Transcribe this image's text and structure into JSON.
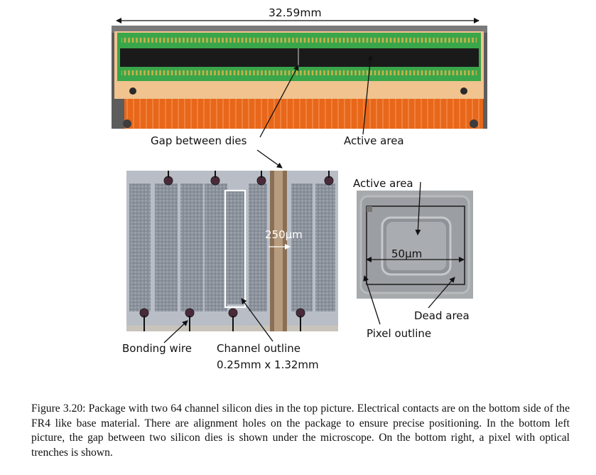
{
  "figure": {
    "dimension_label": "32.59mm",
    "callouts": {
      "gap_between_dies": "Gap between dies",
      "active_area_top": "Active area",
      "active_area_pixel": "Active area",
      "dead_area": "Dead area",
      "pixel_outline": "Pixel outline",
      "bonding_wire": "Bonding wire",
      "channel_outline_1": "Channel outline",
      "channel_outline_2": "0.25mm x 1.32mm",
      "gap_size": "250μm",
      "pixel_size": "50μm"
    },
    "caption": "Figure 3.20: Package with two 64 channel silicon dies in the top picture. Electrical contacts are on the bottom side of the FR4 like base material. There are alignment holes on the package to ensure precise positioning. In the bottom left picture, the gap between two silicon dies is shown under the microscope. On the bottom right, a pixel with optical trenches is shown."
  },
  "colors": {
    "package_orange": "#e8671a",
    "package_green": "#3aa64a",
    "silicon_dark": "#1a1a1a",
    "microscope_grey": "#8a8f98"
  }
}
